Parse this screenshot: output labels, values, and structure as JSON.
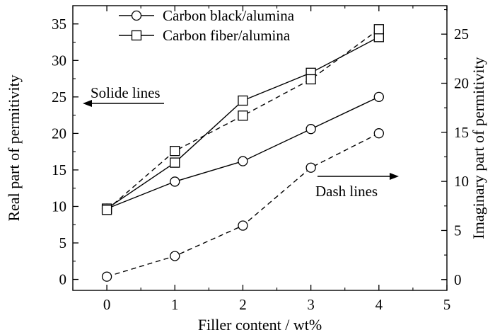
{
  "chart_data": {
    "type": "line",
    "xlabel": "Filler content / wt%",
    "ylabel_left": "Real part of permitivity",
    "ylabel_right": "Imaginary part of permitivity",
    "xlim": [
      -0.5,
      5
    ],
    "ylim_left": [
      -1.5,
      37.5
    ],
    "ylim_right": [
      -1.1,
      27.9
    ],
    "x_ticks": [
      0,
      1,
      2,
      3,
      4,
      5
    ],
    "y_ticks_left": [
      0,
      5,
      10,
      15,
      20,
      25,
      30,
      35
    ],
    "y_ticks_right": [
      0,
      5,
      10,
      15,
      20,
      25
    ],
    "annotations": {
      "left": "Solide lines",
      "right": "Dash lines"
    },
    "legend_position": "top-center",
    "series": [
      {
        "name": "Carbon black/alumina",
        "marker": "circle",
        "x": [
          0,
          1,
          2,
          3,
          4
        ],
        "real": [
          9.7,
          13.4,
          16.2,
          20.6,
          25.0
        ],
        "imaginary": [
          0.3,
          2.4,
          5.5,
          11.4,
          14.9
        ]
      },
      {
        "name": "Carbon fiber/alumina",
        "marker": "square",
        "x": [
          0,
          1,
          2,
          3,
          4
        ],
        "real": [
          9.7,
          16.0,
          24.5,
          28.3,
          33.2
        ],
        "imaginary": [
          7.1,
          13.1,
          16.7,
          20.4,
          25.5
        ]
      }
    ]
  }
}
